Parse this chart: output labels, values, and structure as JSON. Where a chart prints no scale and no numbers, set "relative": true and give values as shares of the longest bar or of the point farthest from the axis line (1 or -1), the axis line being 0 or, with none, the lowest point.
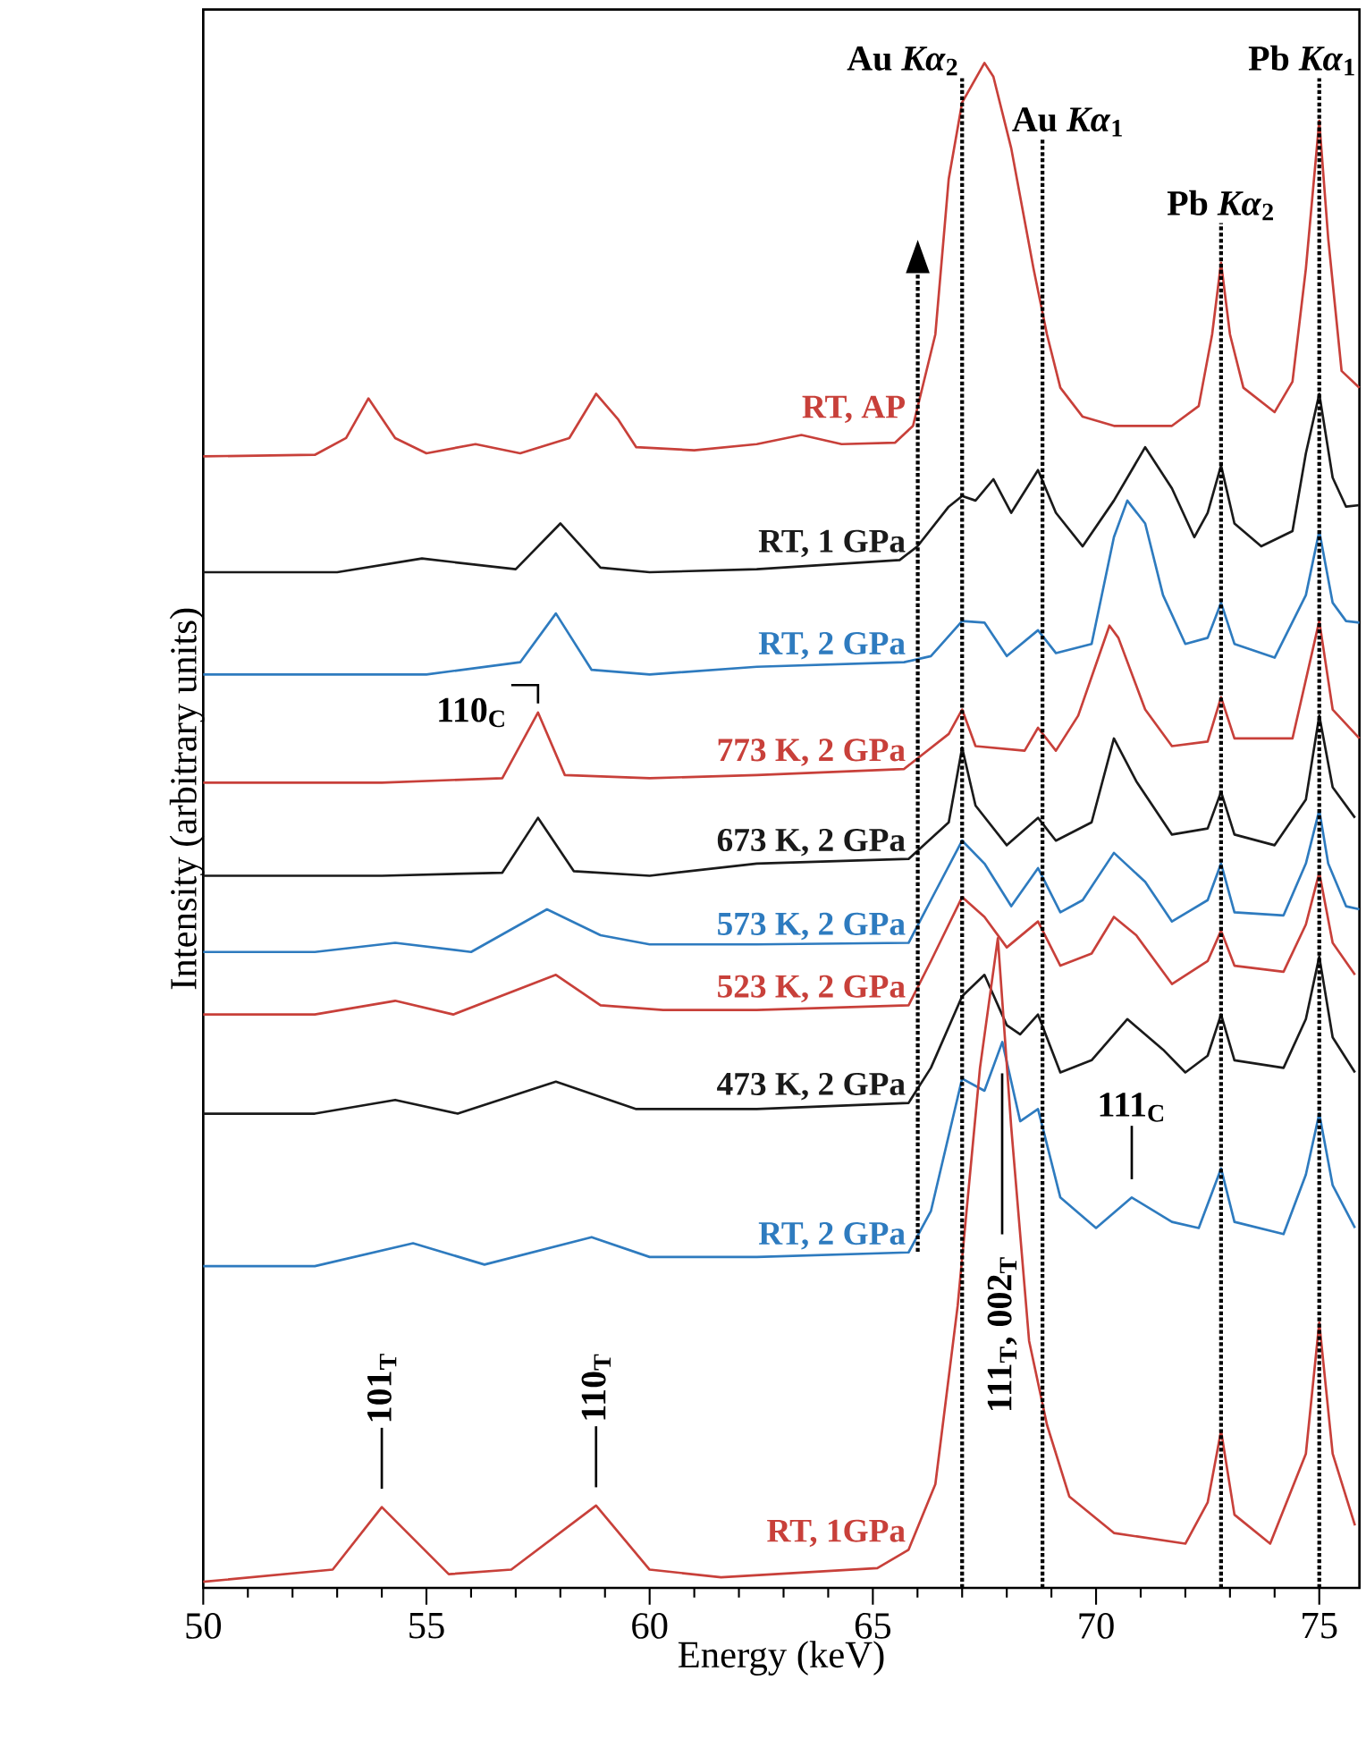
{
  "chart_data": {
    "type": "line",
    "relative": true,
    "xlabel": "Energy (keV)",
    "ylabel": "Intensity (arbitrary units)",
    "xlim": [
      50,
      75.9
    ],
    "xticks": [
      50,
      55,
      60,
      65,
      70,
      75
    ],
    "tick_labels": "x",
    "series": [
      {
        "name": "RT, AP",
        "color": "#c8403a",
        "x": [
          50,
          52.5,
          53.2,
          53.7,
          54.3,
          55,
          56.1,
          57.1,
          58.2,
          58.8,
          59.3,
          59.7,
          61,
          62.4,
          63.4,
          64.3,
          65.5,
          65.9,
          66.4,
          66.7,
          67.0,
          67.5,
          67.7,
          68.1,
          68.6,
          68.9,
          69.2,
          69.7,
          70.4,
          71.7,
          72.3,
          72.6,
          72.8,
          73.0,
          73.3,
          74.0,
          74.4,
          74.7,
          75.0,
          75.2,
          75.5,
          75.9
        ],
        "values": [
          0.742,
          0.743,
          0.754,
          0.78,
          0.754,
          0.744,
          0.75,
          0.744,
          0.754,
          0.783,
          0.766,
          0.748,
          0.746,
          0.75,
          0.756,
          0.75,
          0.751,
          0.762,
          0.822,
          0.924,
          0.974,
          1.0,
          0.991,
          0.944,
          0.865,
          0.822,
          0.787,
          0.768,
          0.762,
          0.762,
          0.775,
          0.822,
          0.869,
          0.822,
          0.787,
          0.771,
          0.791,
          0.865,
          0.962,
          0.885,
          0.798,
          0.787
        ]
      },
      {
        "name": "RT, 1 GPa",
        "color": "#1a1a1a",
        "x": [
          50,
          53,
          54.9,
          57.0,
          58.0,
          58.9,
          60,
          62.4,
          65.6,
          66.0,
          66.7,
          67.0,
          67.3,
          67.7,
          68.1,
          68.7,
          69.1,
          69.7,
          70.4,
          71.1,
          71.7,
          72.2,
          72.5,
          72.8,
          73.1,
          73.7,
          74.4,
          74.7,
          75.0,
          75.3,
          75.6,
          75.9
        ],
        "values": [
          0.666,
          0.666,
          0.675,
          0.668,
          0.698,
          0.669,
          0.666,
          0.668,
          0.674,
          0.683,
          0.709,
          0.716,
          0.713,
          0.727,
          0.705,
          0.733,
          0.705,
          0.683,
          0.713,
          0.748,
          0.721,
          0.689,
          0.705,
          0.736,
          0.698,
          0.683,
          0.693,
          0.744,
          0.783,
          0.728,
          0.709,
          0.71
        ]
      },
      {
        "name": "RT, 2 GPa",
        "color": "#2e7bbf",
        "x": [
          50,
          55,
          57.1,
          57.9,
          58.7,
          60,
          62.4,
          65.7,
          66.3,
          67.0,
          67.5,
          68.0,
          68.7,
          69.1,
          69.9,
          70.4,
          70.7,
          71.1,
          71.5,
          72.0,
          72.5,
          72.8,
          73.1,
          74.0,
          74.7,
          75.0,
          75.3,
          75.6,
          75.9
        ],
        "values": [
          0.599,
          0.599,
          0.607,
          0.639,
          0.602,
          0.599,
          0.604,
          0.607,
          0.611,
          0.634,
          0.633,
          0.611,
          0.628,
          0.613,
          0.619,
          0.689,
          0.713,
          0.698,
          0.651,
          0.619,
          0.623,
          0.646,
          0.619,
          0.61,
          0.651,
          0.693,
          0.646,
          0.634,
          0.633
        ]
      },
      {
        "name": "773 K, 2 GPa",
        "color": "#c8403a",
        "x": [
          50,
          54,
          56.7,
          57.5,
          58.1,
          60,
          62.4,
          65.7,
          66.7,
          67.0,
          67.3,
          68.4,
          68.7,
          69.1,
          69.6,
          70.3,
          70.5,
          71.1,
          71.7,
          72.5,
          72.8,
          73.1,
          74.4,
          75.0,
          75.3,
          75.9
        ],
        "values": [
          0.528,
          0.528,
          0.531,
          0.574,
          0.533,
          0.531,
          0.533,
          0.537,
          0.56,
          0.576,
          0.552,
          0.549,
          0.564,
          0.549,
          0.572,
          0.631,
          0.623,
          0.576,
          0.552,
          0.555,
          0.584,
          0.557,
          0.557,
          0.634,
          0.576,
          0.557
        ]
      },
      {
        "name": "673 K, 2 GPa",
        "color": "#1a1a1a",
        "x": [
          50,
          54,
          56.7,
          57.5,
          58.3,
          60,
          62.4,
          65.8,
          66.7,
          67.0,
          67.3,
          68.0,
          68.7,
          69.1,
          69.9,
          70.4,
          70.9,
          71.7,
          72.5,
          72.8,
          73.1,
          74.0,
          74.7,
          75.0,
          75.3,
          75.8
        ],
        "values": [
          0.467,
          0.467,
          0.469,
          0.505,
          0.47,
          0.467,
          0.475,
          0.478,
          0.502,
          0.551,
          0.513,
          0.487,
          0.505,
          0.49,
          0.502,
          0.557,
          0.529,
          0.494,
          0.498,
          0.522,
          0.494,
          0.487,
          0.517,
          0.572,
          0.525,
          0.505
        ]
      },
      {
        "name": "573 K, 2 GPa",
        "color": "#2e7bbf",
        "x": [
          50,
          52.5,
          54.3,
          56,
          57.7,
          58.9,
          60.0,
          62.4,
          65.8,
          66.3,
          67.0,
          67.5,
          68.1,
          68.7,
          69.2,
          69.7,
          70.4,
          71.1,
          71.7,
          72.5,
          72.8,
          73.1,
          74.2,
          74.7,
          75.0,
          75.2,
          75.6,
          75.9
        ],
        "values": [
          0.417,
          0.417,
          0.423,
          0.417,
          0.445,
          0.428,
          0.422,
          0.422,
          0.423,
          0.451,
          0.49,
          0.475,
          0.447,
          0.472,
          0.443,
          0.451,
          0.482,
          0.463,
          0.437,
          0.451,
          0.475,
          0.443,
          0.441,
          0.475,
          0.51,
          0.475,
          0.447,
          0.445
        ]
      },
      {
        "name": "523 K, 2 GPa",
        "color": "#c8403a",
        "x": [
          50,
          52.5,
          54.3,
          55.6,
          57.9,
          58.9,
          60.3,
          62.4,
          65.8,
          66.3,
          67.0,
          67.5,
          68.0,
          68.7,
          69.2,
          69.9,
          70.4,
          70.9,
          71.7,
          72.5,
          72.8,
          73.1,
          74.2,
          74.7,
          75.0,
          75.3,
          75.8
        ],
        "values": [
          0.376,
          0.376,
          0.385,
          0.376,
          0.402,
          0.382,
          0.379,
          0.379,
          0.382,
          0.411,
          0.453,
          0.44,
          0.42,
          0.437,
          0.408,
          0.416,
          0.44,
          0.428,
          0.396,
          0.411,
          0.431,
          0.408,
          0.404,
          0.435,
          0.469,
          0.423,
          0.402
        ]
      },
      {
        "name": "473 K, 2 GPa",
        "color": "#1a1a1a",
        "x": [
          50,
          52.5,
          54.3,
          55.7,
          57.9,
          59.7,
          62.4,
          65.8,
          66.3,
          67.0,
          67.5,
          68.0,
          68.3,
          68.7,
          69.2,
          69.9,
          70.7,
          71.5,
          72.0,
          72.5,
          72.8,
          73.1,
          74.2,
          74.7,
          75.0,
          75.3,
          75.8
        ],
        "values": [
          0.311,
          0.311,
          0.32,
          0.311,
          0.332,
          0.314,
          0.314,
          0.318,
          0.341,
          0.388,
          0.402,
          0.369,
          0.363,
          0.376,
          0.338,
          0.346,
          0.373,
          0.353,
          0.338,
          0.349,
          0.376,
          0.346,
          0.341,
          0.373,
          0.414,
          0.361,
          0.338
        ]
      },
      {
        "name": "RT, 2 GPa",
        "color": "#2e7bbf",
        "x": [
          50,
          52.5,
          54.7,
          56.3,
          58.7,
          60.0,
          62.4,
          65.8,
          66.3,
          67.0,
          67.5,
          67.9,
          68.3,
          68.7,
          69.2,
          70.0,
          70.8,
          71.7,
          72.3,
          72.8,
          73.1,
          74.2,
          74.7,
          75.0,
          75.3,
          75.8
        ],
        "values": [
          0.211,
          0.211,
          0.226,
          0.212,
          0.23,
          0.217,
          0.217,
          0.22,
          0.247,
          0.334,
          0.326,
          0.358,
          0.306,
          0.314,
          0.256,
          0.236,
          0.256,
          0.24,
          0.236,
          0.275,
          0.24,
          0.232,
          0.271,
          0.311,
          0.264,
          0.236
        ]
      },
      {
        "name": "RT, 1GPa",
        "color": "#c8403a",
        "x": [
          50,
          52.9,
          54.0,
          55.5,
          56.9,
          58.8,
          60.0,
          61.6,
          65.1,
          65.8,
          66.4,
          66.9,
          67.4,
          67.8,
          68.1,
          68.5,
          68.9,
          69.4,
          70.4,
          72.0,
          72.5,
          72.8,
          73.1,
          73.9,
          74.7,
          75.0,
          75.3,
          75.8
        ],
        "values": [
          0.004,
          0.012,
          0.053,
          0.009,
          0.012,
          0.054,
          0.012,
          0.007,
          0.013,
          0.025,
          0.068,
          0.185,
          0.341,
          0.426,
          0.302,
          0.162,
          0.107,
          0.06,
          0.036,
          0.029,
          0.056,
          0.103,
          0.048,
          0.029,
          0.088,
          0.174,
          0.088,
          0.041
        ]
      }
    ],
    "ref_lines": [
      {
        "axis": "x",
        "value": 67.0,
        "label": "Au *Kα*$_{2}$",
        "color": "#000000",
        "line_style": "dotted"
      },
      {
        "axis": "x",
        "value": 68.8,
        "label": "Au *Kα*$_{1}$",
        "color": "#000000",
        "line_style": "dotted"
      },
      {
        "axis": "x",
        "value": 72.8,
        "label": "Pb *Kα*$_{2}$",
        "color": "#000000",
        "line_style": "dotted"
      },
      {
        "axis": "x",
        "value": 75.0,
        "label": "Pb *Kα*$_{1}$",
        "color": "#000000",
        "line_style": "dotted"
      }
    ],
    "annotations": [
      {
        "text": "110$_{C}$",
        "x": 57.5,
        "y": 0.574
      },
      {
        "text": "111$_{C}$",
        "x": 70.8,
        "y": 0.256
      },
      {
        "text": "101$_{T}$",
        "x": 54.0,
        "y": 0.053
      },
      {
        "text": "110$_{T}$",
        "x": 58.8,
        "y": 0.054
      },
      "111$_{T}$, 002$_{T}$"
    ]
  }
}
